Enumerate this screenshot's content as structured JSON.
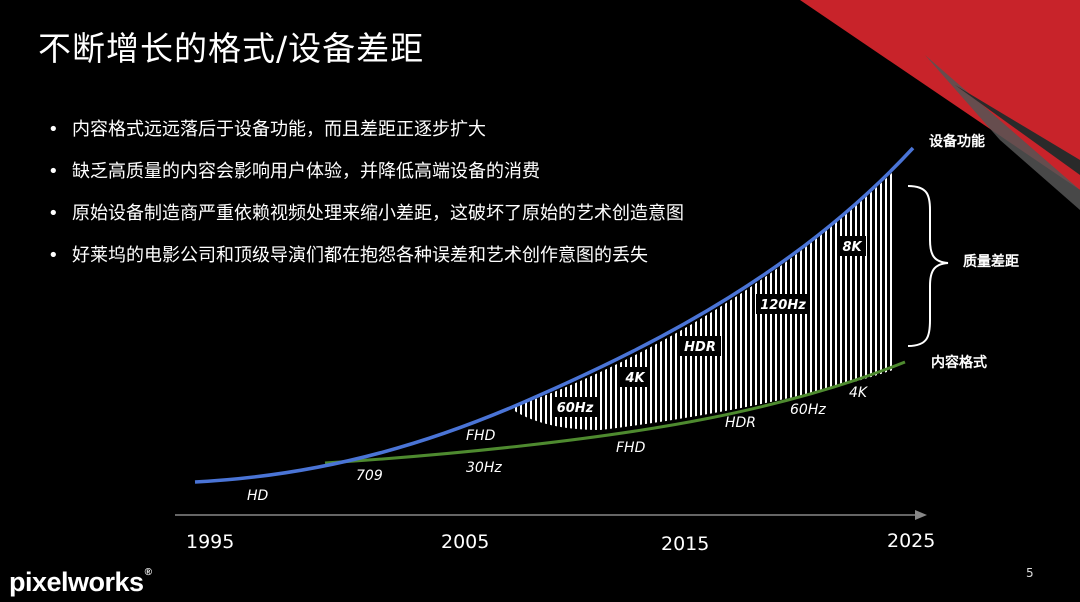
{
  "title": "不断增长的格式/设备差距",
  "bullets": [
    "内容格式远远落后于设备功能，而且差距正逐步扩大",
    "缺乏高质量的内容会影响用户体验，并降低高端设备的消费",
    "原始设备制造商严重依赖视频处理来缩小差距，这破坏了原始的艺术创造意图",
    "好莱坞的电影公司和顶级导演们都在抱怨各种误差和艺术创作意图的丢失"
  ],
  "diagram": {
    "device_label": "设备功能",
    "gap_label": "质量差距",
    "content_label": "内容格式",
    "years": [
      "1995",
      "2005",
      "2015",
      "2025"
    ],
    "device_milestones": [
      "HD",
      "709",
      "FHD",
      "30Hz"
    ],
    "gap_badges": [
      "60Hz",
      "4K",
      "HDR",
      "120Hz",
      "8K"
    ],
    "content_milestones": [
      "FHD",
      "HDR",
      "60Hz",
      "4K"
    ],
    "colors": {
      "device_curve": "#4a74d6",
      "content_curve": "#4e8a2f",
      "accent_red": "#c8232a"
    }
  },
  "footer": {
    "logo": "pixelworks",
    "logo_mark": "®",
    "page_number": "5"
  }
}
